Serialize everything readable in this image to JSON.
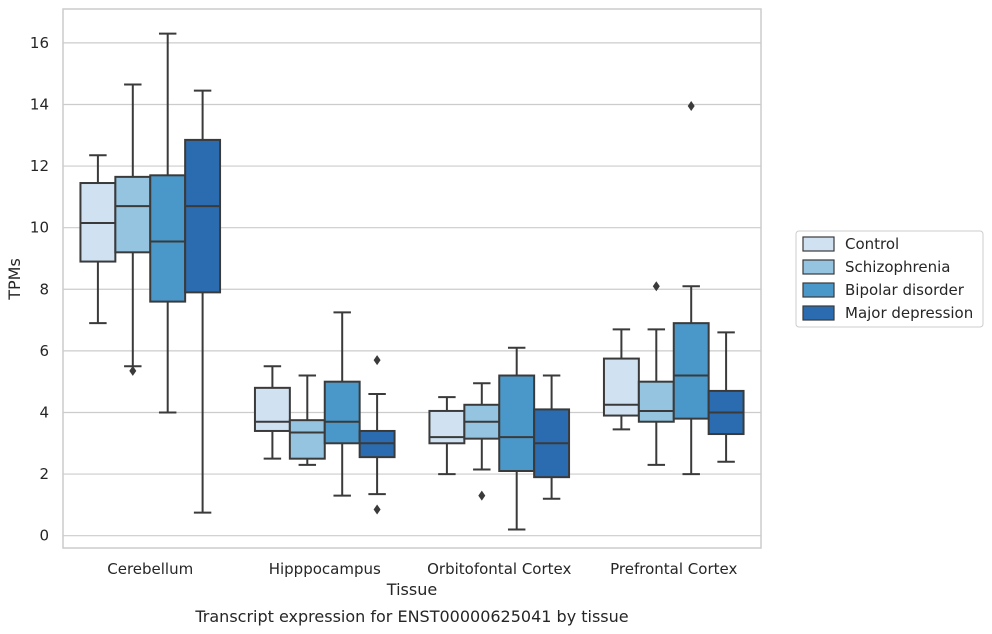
{
  "chart_data": {
    "type": "boxplot",
    "title": "",
    "xlabel": "Tissue",
    "ylabel": "TPMs",
    "caption": "Transcript expression for ENST00000625041 by tissue",
    "ylim": [
      -0.4,
      17.1
    ],
    "yticks": [
      "0",
      "2",
      "4",
      "6",
      "8",
      "10",
      "12",
      "14",
      "16"
    ],
    "grid": true,
    "legend_position": "right",
    "categories": [
      "Cerebellum",
      "Hipppocampus",
      "Orbitofontal Cortex",
      "Prefrontal Cortex"
    ],
    "series": [
      {
        "name": "Control",
        "color": "#d0e1f2",
        "boxes": [
          {
            "whislo": 6.9,
            "q1": 8.9,
            "med": 10.15,
            "q3": 11.45,
            "whishi": 12.35,
            "fliers": []
          },
          {
            "whislo": 2.5,
            "q1": 3.4,
            "med": 3.7,
            "q3": 4.8,
            "whishi": 5.5,
            "fliers": []
          },
          {
            "whislo": 2.0,
            "q1": 3.0,
            "med": 3.2,
            "q3": 4.05,
            "whishi": 4.5,
            "fliers": []
          },
          {
            "whislo": 3.45,
            "q1": 3.9,
            "med": 4.25,
            "q3": 5.75,
            "whishi": 6.7,
            "fliers": []
          }
        ]
      },
      {
        "name": "Schizophrenia",
        "color": "#94c4df",
        "boxes": [
          {
            "whislo": 5.5,
            "q1": 9.2,
            "med": 10.7,
            "q3": 11.65,
            "whishi": 14.65,
            "fliers": [
              5.35
            ]
          },
          {
            "whislo": 2.3,
            "q1": 2.5,
            "med": 3.35,
            "q3": 3.75,
            "whishi": 5.2,
            "fliers": []
          },
          {
            "whislo": 2.15,
            "q1": 3.15,
            "med": 3.7,
            "q3": 4.25,
            "whishi": 4.95,
            "fliers": [
              1.3
            ]
          },
          {
            "whislo": 2.3,
            "q1": 3.7,
            "med": 4.05,
            "q3": 5.0,
            "whishi": 6.7,
            "fliers": [
              8.1
            ]
          }
        ]
      },
      {
        "name": "Bipolar disorder",
        "color": "#4a98c9",
        "boxes": [
          {
            "whislo": 4.0,
            "q1": 7.6,
            "med": 9.55,
            "q3": 11.7,
            "whishi": 16.3,
            "fliers": []
          },
          {
            "whislo": 1.3,
            "q1": 3.0,
            "med": 3.7,
            "q3": 5.0,
            "whishi": 7.25,
            "fliers": []
          },
          {
            "whislo": 0.2,
            "q1": 2.1,
            "med": 3.2,
            "q3": 5.2,
            "whishi": 6.1,
            "fliers": []
          },
          {
            "whislo": 2.0,
            "q1": 3.8,
            "med": 5.2,
            "q3": 6.9,
            "whishi": 8.1,
            "fliers": [
              13.95
            ]
          }
        ]
      },
      {
        "name": "Major depression",
        "color": "#2b6cb0",
        "boxes": [
          {
            "whislo": 0.75,
            "q1": 7.9,
            "med": 10.7,
            "q3": 12.85,
            "whishi": 14.45,
            "fliers": []
          },
          {
            "whislo": 1.35,
            "q1": 2.55,
            "med": 3.0,
            "q3": 3.4,
            "whishi": 4.6,
            "fliers": [
              5.7,
              0.85
            ]
          },
          {
            "whislo": 1.2,
            "q1": 1.9,
            "med": 3.0,
            "q3": 4.1,
            "whishi": 5.2,
            "fliers": []
          },
          {
            "whislo": 2.4,
            "q1": 3.3,
            "med": 4.0,
            "q3": 4.7,
            "whishi": 6.6,
            "fliers": []
          }
        ]
      }
    ]
  }
}
